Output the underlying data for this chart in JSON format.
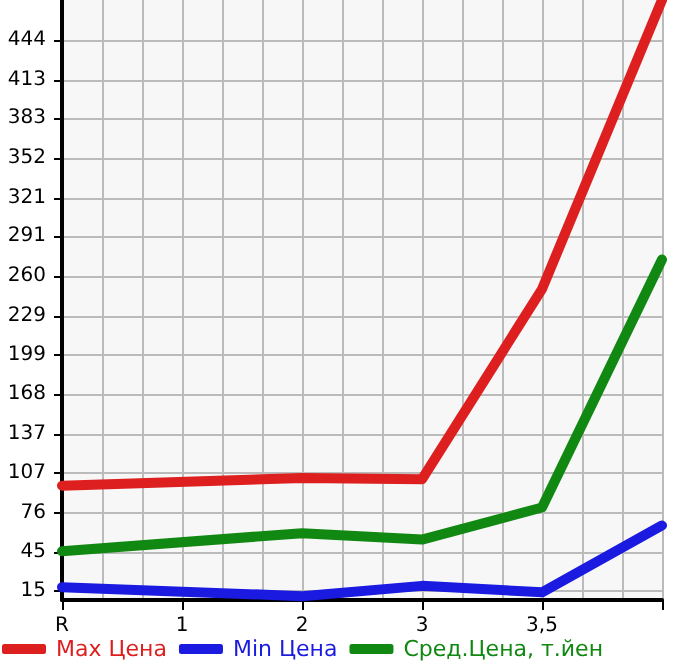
{
  "chart_data": {
    "type": "line",
    "categories": [
      "R",
      "1",
      "2",
      "3",
      "3,5",
      null
    ],
    "series": [
      {
        "name": "Max Цена",
        "color": "#dd1f1f",
        "values": [
          97,
          null,
          103,
          102,
          250,
          475
        ]
      },
      {
        "name": "Min Цена",
        "color": "#1a1ae0",
        "values": [
          18,
          null,
          11,
          19,
          14,
          66
        ]
      },
      {
        "name": "Сред.Цена, т.йен",
        "color": "#118811",
        "values": [
          46,
          null,
          60,
          55,
          80,
          273
        ]
      }
    ],
    "ylim": [
      8,
      475
    ],
    "yticks": [
      15,
      45,
      76,
      107,
      137,
      168,
      199,
      229,
      260,
      291,
      321,
      352,
      383,
      413,
      444
    ],
    "grid": true,
    "legend": "bottom",
    "marker": "none",
    "line_style": "solid"
  }
}
